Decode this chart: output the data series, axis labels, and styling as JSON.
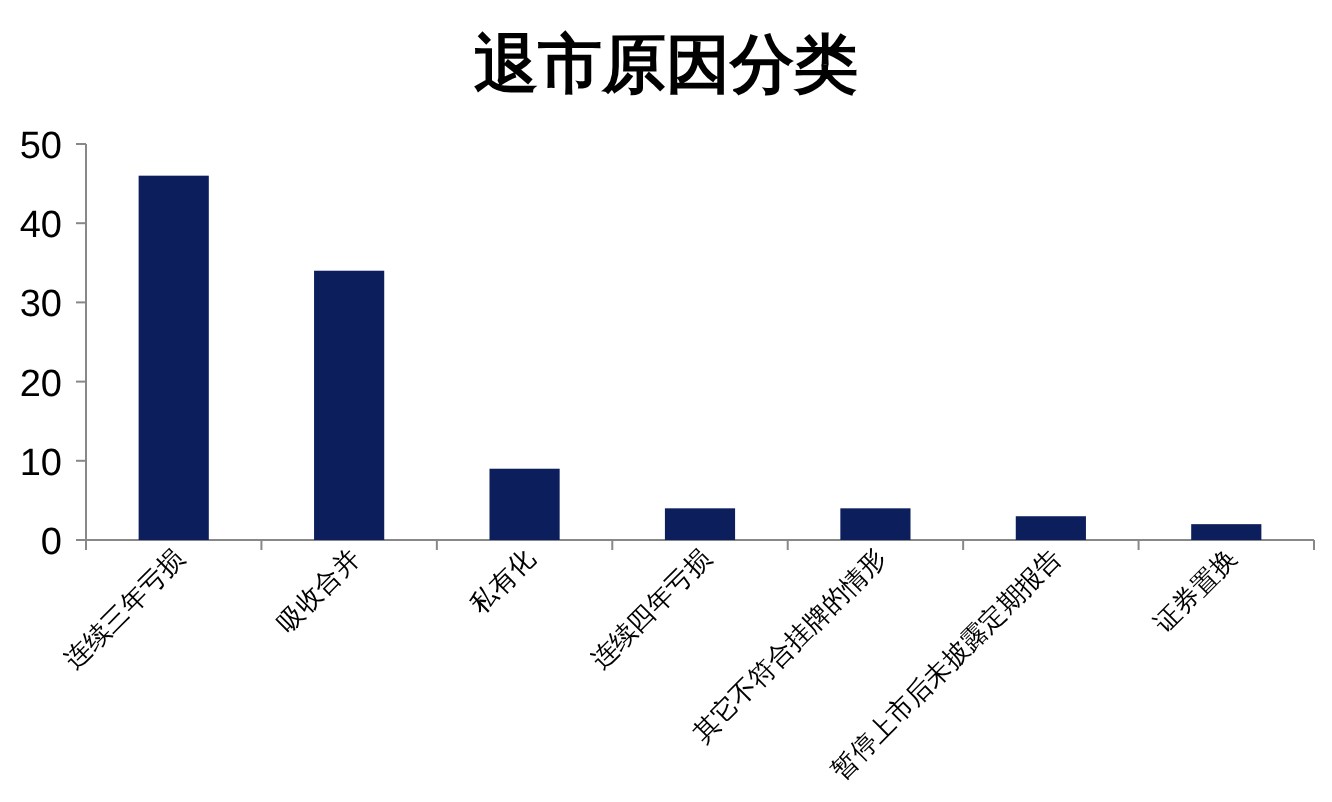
{
  "chart_data": {
    "type": "bar",
    "title": "退市原因分类",
    "categories": [
      "连续三年亏损",
      "吸收合并",
      "私有化",
      "连续四年亏损",
      "其它不符合挂牌的情形",
      "暂停上市后未披露定期报告",
      "证券置换"
    ],
    "values": [
      46,
      34,
      9,
      4,
      4,
      3,
      2
    ],
    "color": "#0c1f5c",
    "ylim": [
      0,
      50
    ],
    "yticks": [
      0,
      10,
      20,
      30,
      40,
      50
    ],
    "grid": false
  }
}
